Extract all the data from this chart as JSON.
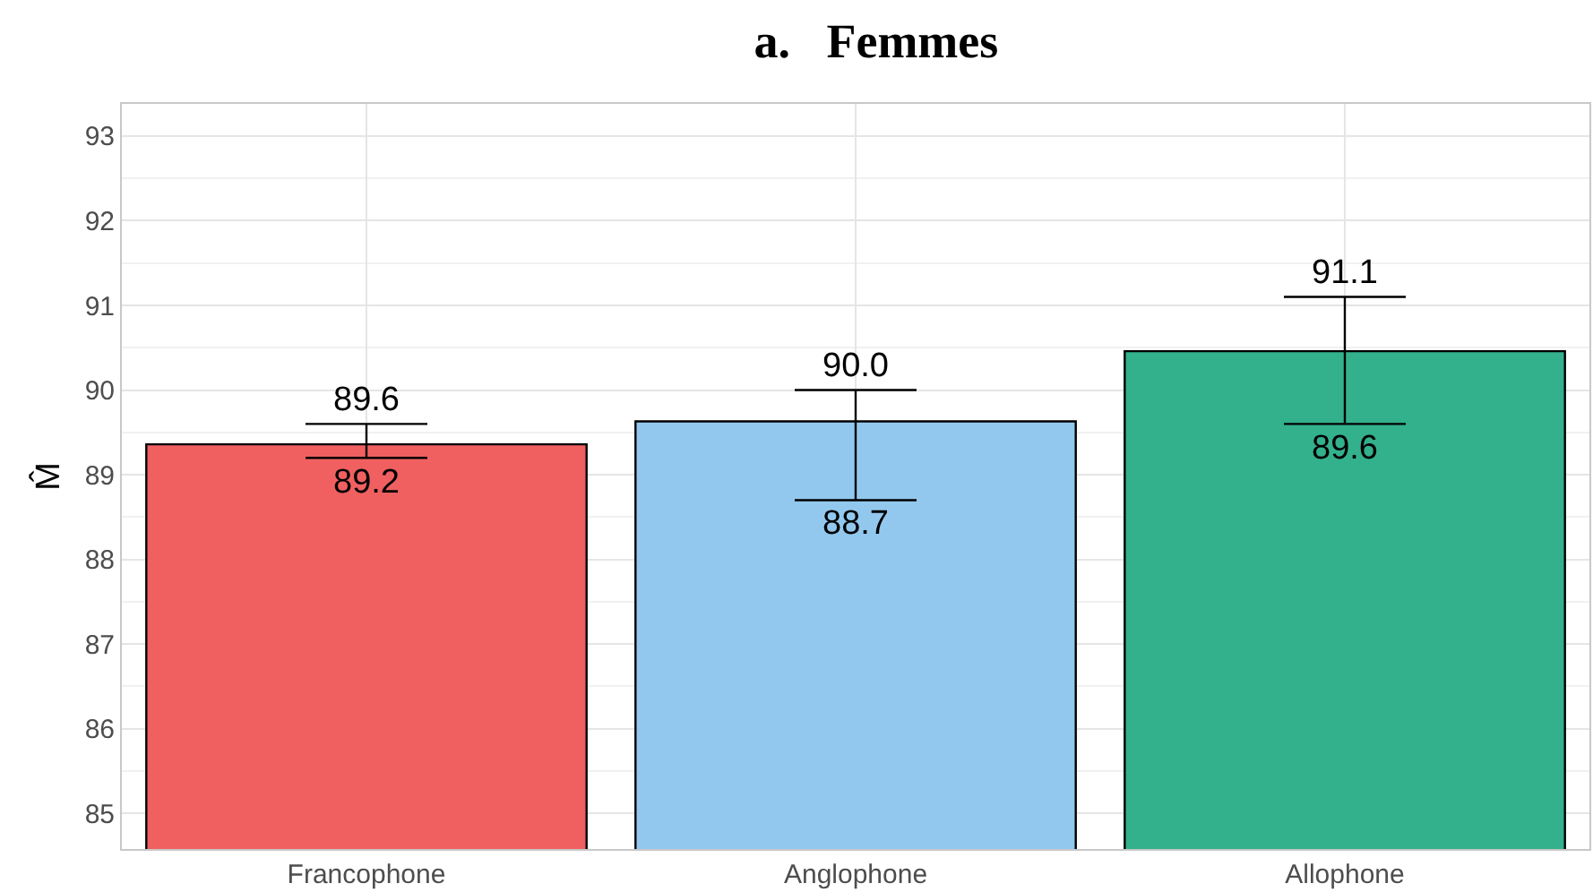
{
  "chart_data": {
    "type": "bar",
    "title": "a.   Femmes",
    "ylabel": "M̂",
    "categories": [
      "Francophone",
      "Anglophone",
      "Allophone"
    ],
    "values": [
      89.36,
      89.63,
      90.46
    ],
    "colors": [
      "#f06060",
      "#93c8ee",
      "#33b08c"
    ],
    "errors": [
      [
        89.2,
        89.6
      ],
      [
        88.7,
        90.0
      ],
      [
        89.6,
        91.1
      ]
    ],
    "annotations": [
      {
        "text": "89.6",
        "x": "Francophone",
        "y": 89.6
      },
      {
        "text": "89.2",
        "x": "Francophone",
        "y": 89.2
      },
      {
        "text": "90.0",
        "x": "Anglophone",
        "y": 90.0
      },
      {
        "text": "88.7",
        "x": "Anglophone",
        "y": 88.7
      },
      {
        "text": "91.1",
        "x": "Allophone",
        "y": 91.1
      },
      {
        "text": "89.6",
        "x": "Allophone",
        "y": 89.6
      }
    ],
    "ylim": [
      84.58,
      93.38
    ],
    "yticks": [
      85,
      86,
      87,
      88,
      89,
      90,
      91,
      92,
      93
    ],
    "grid": true,
    "legend": false
  }
}
